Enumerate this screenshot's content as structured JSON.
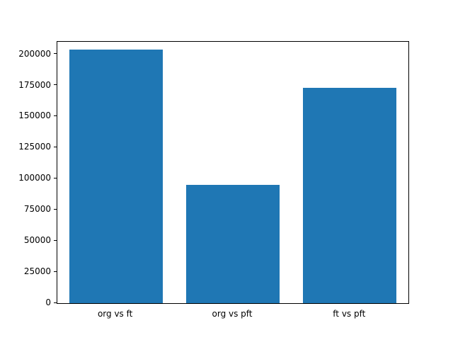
{
  "chart_data": {
    "type": "bar",
    "title": "",
    "xlabel": "",
    "ylabel": "",
    "categories": [
      "org vs ft",
      "org vs pft",
      "ft vs pft"
    ],
    "values": [
      204000,
      95000,
      173000
    ],
    "ylim": [
      0,
      210000
    ],
    "yticks": [
      0,
      25000,
      50000,
      75000,
      100000,
      125000,
      150000,
      175000,
      200000
    ],
    "bar_color": "#1f77b4",
    "axis_color": "#000000",
    "background": "#ffffff",
    "grid": "off",
    "legend": "none"
  }
}
